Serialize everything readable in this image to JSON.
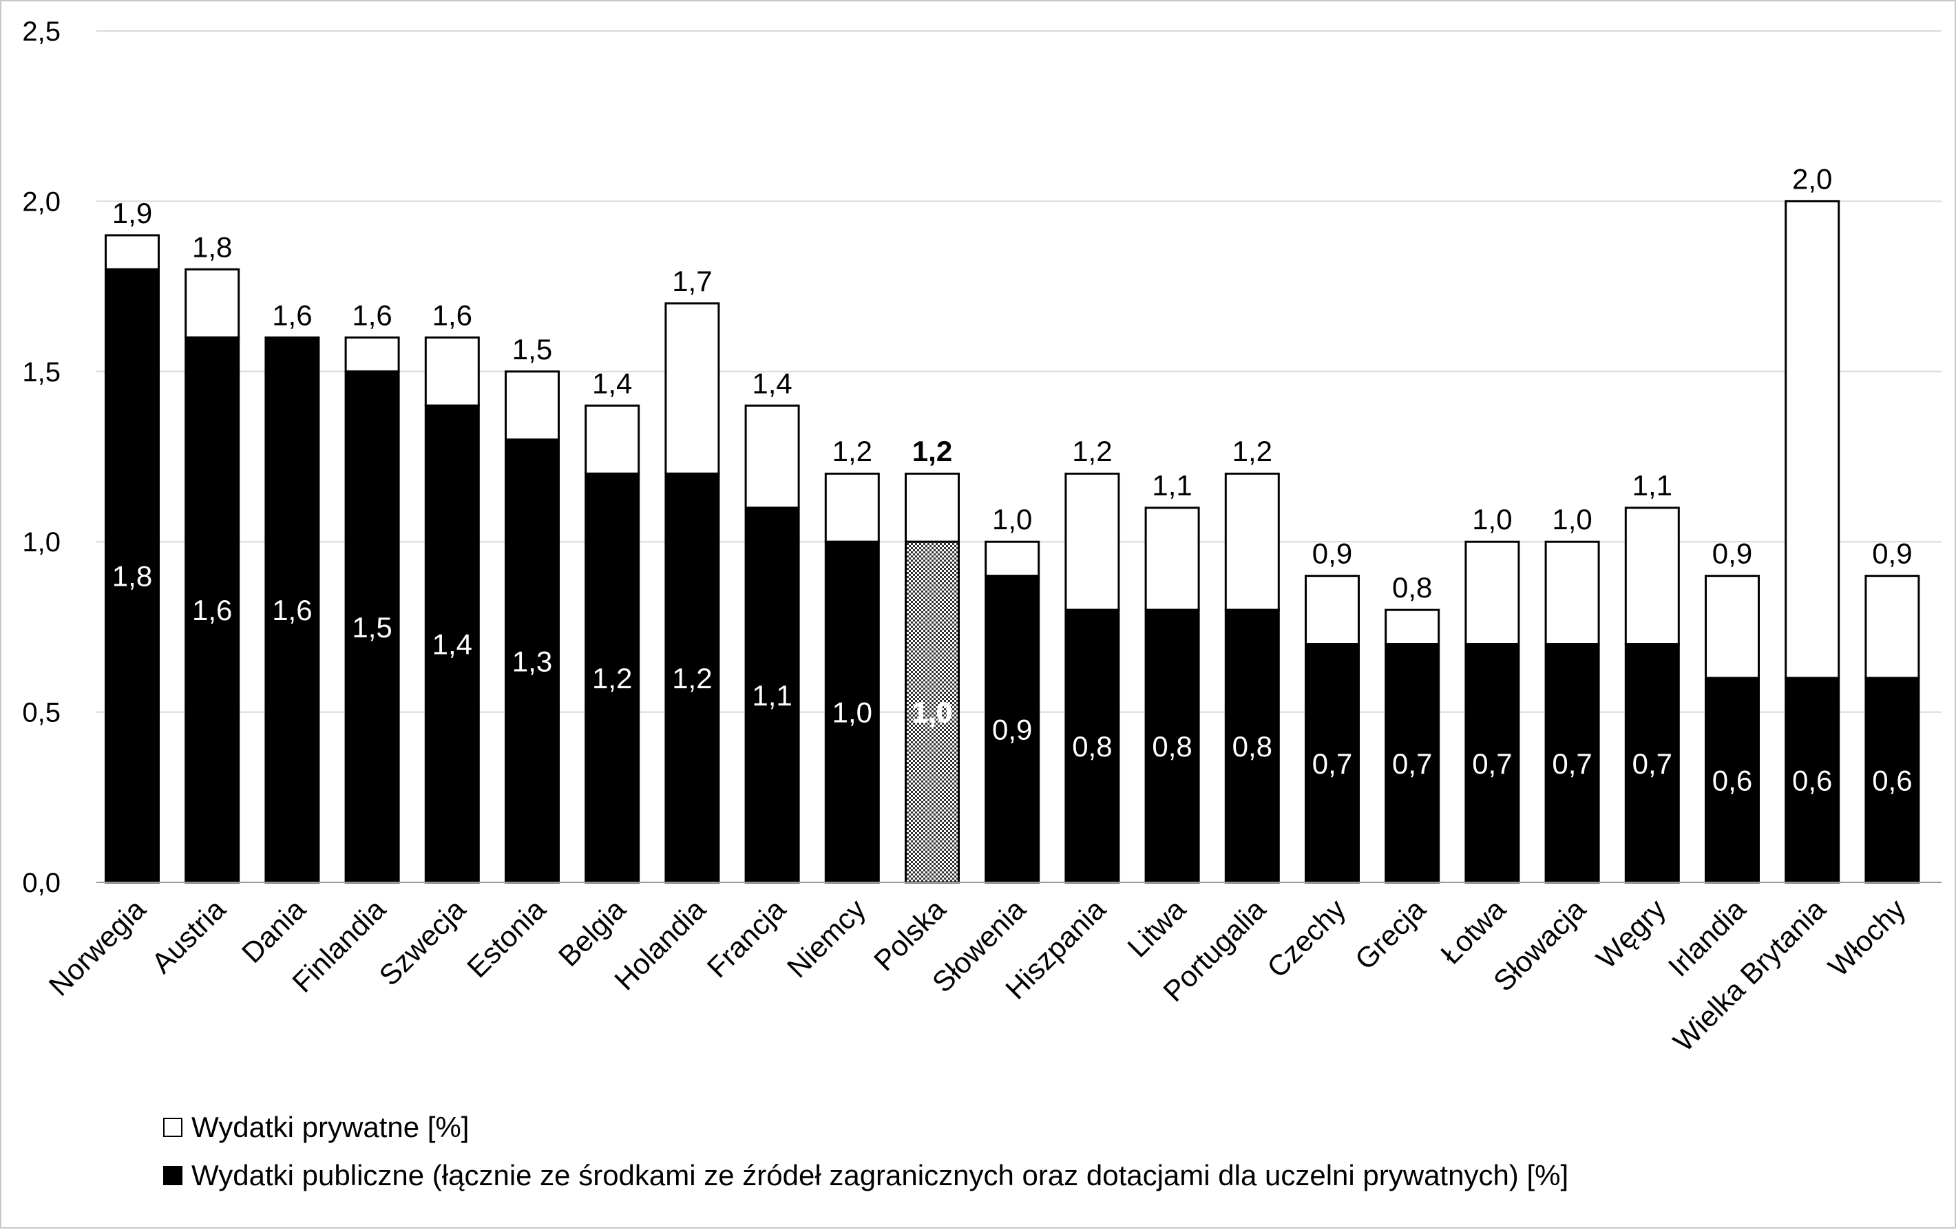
{
  "chart_data": {
    "type": "bar",
    "stacked": true,
    "title": "",
    "xlabel": "",
    "ylabel": "",
    "ylim": [
      0,
      2.5
    ],
    "yticks": [
      "0,0",
      "0,5",
      "1,0",
      "1,5",
      "2,0",
      "2,5"
    ],
    "ytick_values": [
      0,
      0.5,
      1.0,
      1.5,
      2.0,
      2.5
    ],
    "grid": true,
    "legend_position": "bottom-left",
    "highlight_category": "Polska",
    "categories": [
      "Norwegia",
      "Austria",
      "Dania",
      "Finlandia",
      "Szwecja",
      "Estonia",
      "Belgia",
      "Holandia",
      "Francja",
      "Niemcy",
      "Polska",
      "Słowenia",
      "Hiszpania",
      "Litwa",
      "Portugalia",
      "Czechy",
      "Grecja",
      "Łotwa",
      "Słowacja",
      "Węgry",
      "Irlandia",
      "Wielka Brytania",
      "Włochy"
    ],
    "totals": [
      1.9,
      1.8,
      1.6,
      1.6,
      1.6,
      1.5,
      1.4,
      1.7,
      1.4,
      1.2,
      1.2,
      1.0,
      1.2,
      1.1,
      1.2,
      0.9,
      0.8,
      1.0,
      1.0,
      1.1,
      0.9,
      2.0,
      0.9
    ],
    "total_labels": [
      "1,9",
      "1,8",
      "1,6",
      "1,6",
      "1,6",
      "1,5",
      "1,4",
      "1,7",
      "1,4",
      "1,2",
      "1,2",
      "1,0",
      "1,2",
      "1,1",
      "1,2",
      "0,9",
      "0,8",
      "1,0",
      "1,0",
      "1,1",
      "0,9",
      "2,0",
      "0,9"
    ],
    "series": [
      {
        "name": "Wydatki publiczne (łącznie ze środkami ze źródeł zagranicznych oraz dotacjami dla uczelni prywatnych) [%]",
        "color": "#000000",
        "values": [
          1.8,
          1.6,
          1.6,
          1.5,
          1.4,
          1.3,
          1.2,
          1.2,
          1.1,
          1.0,
          1.0,
          0.9,
          0.8,
          0.8,
          0.8,
          0.7,
          0.7,
          0.7,
          0.7,
          0.7,
          0.6,
          0.6,
          0.6
        ],
        "labels": [
          "1,8",
          "1,6",
          "1,6",
          "1,5",
          "1,4",
          "1,3",
          "1,2",
          "1,2",
          "1,1",
          "1,0",
          "1,0",
          "0,9",
          "0,8",
          "0,8",
          "0,8",
          "0,7",
          "0,7",
          "0,7",
          "0,7",
          "0,7",
          "0,6",
          "0,6",
          "0,6"
        ]
      },
      {
        "name": "Wydatki prywatne [%]",
        "color": "#ffffff",
        "values": [
          0.1,
          0.2,
          0.0,
          0.1,
          0.2,
          0.2,
          0.2,
          0.5,
          0.3,
          0.2,
          0.2,
          0.1,
          0.4,
          0.3,
          0.4,
          0.2,
          0.1,
          0.3,
          0.3,
          0.4,
          0.3,
          1.4,
          0.3
        ]
      }
    ]
  }
}
